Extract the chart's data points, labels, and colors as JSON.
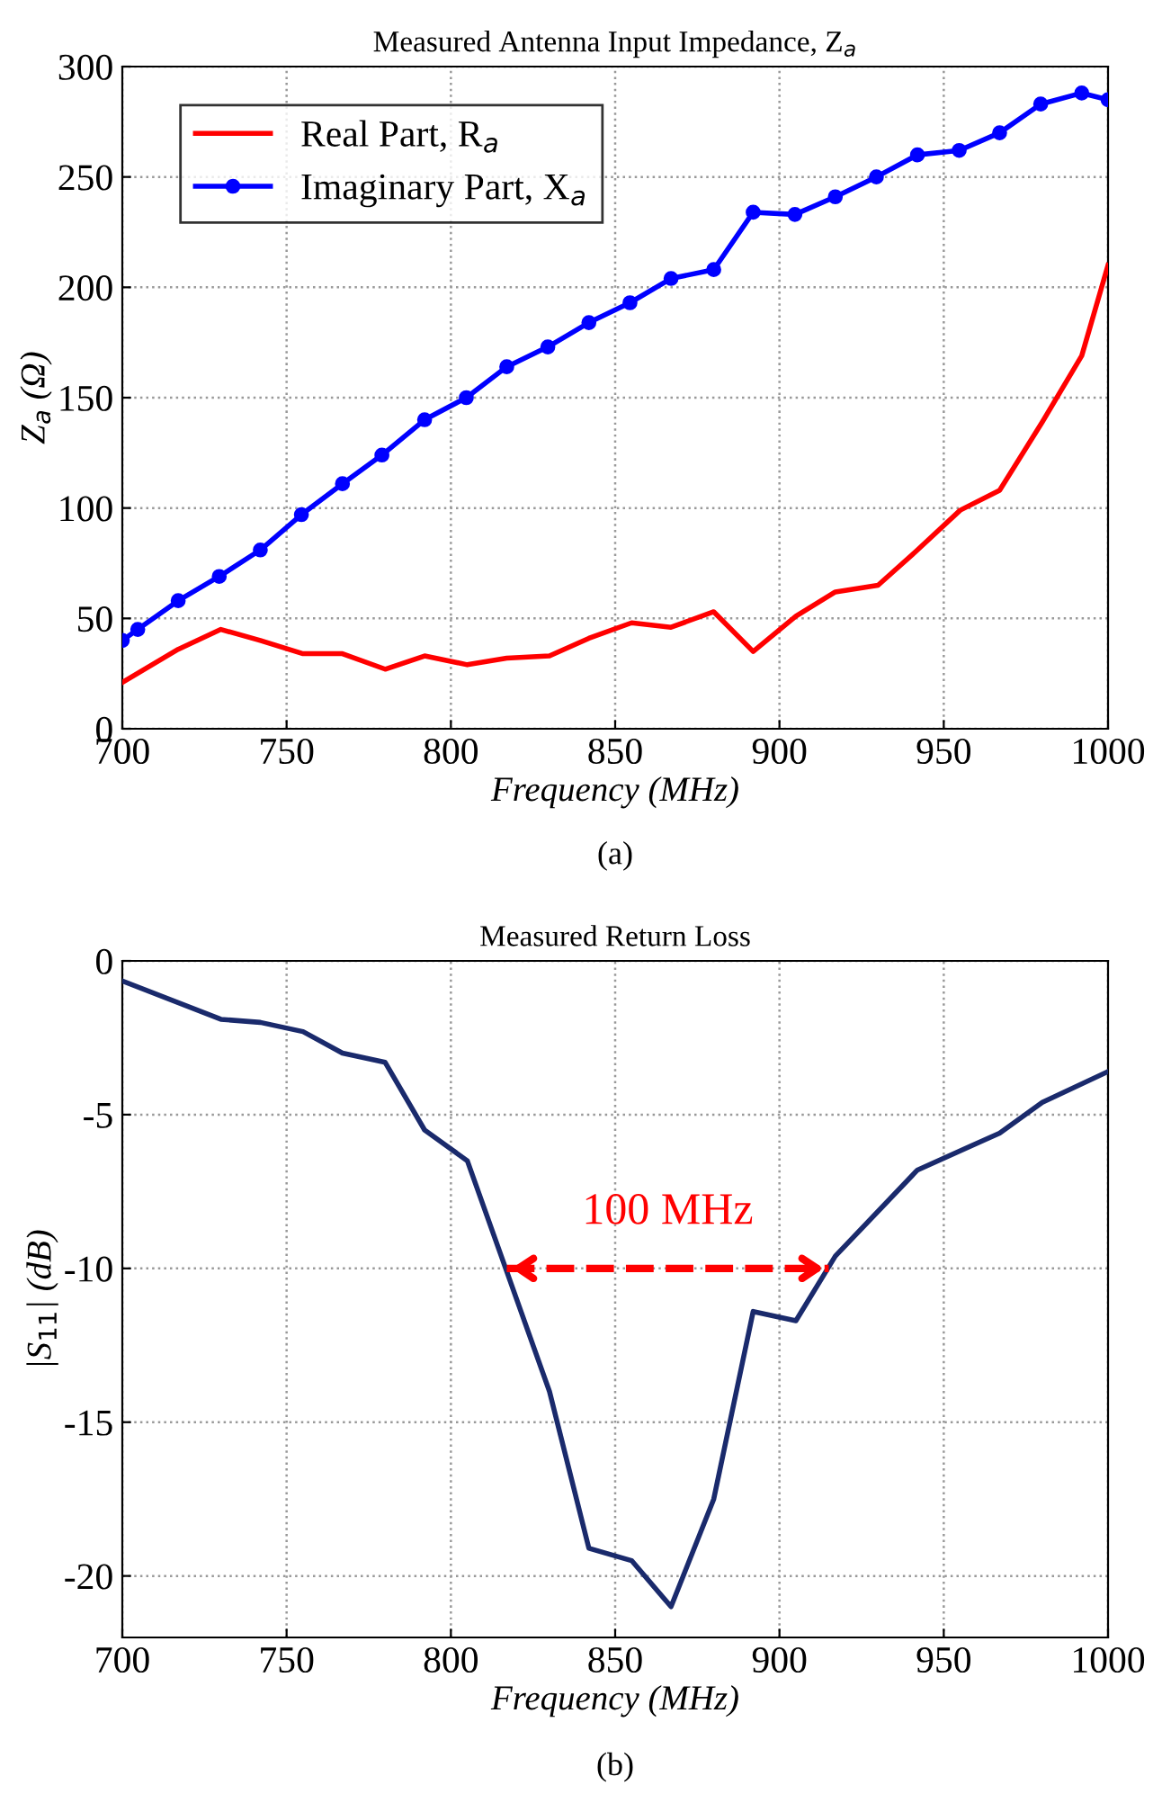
{
  "chart_data": [
    {
      "type": "line",
      "title": "Measured Antenna Input Impedance, Z$_{a}$",
      "xlabel": "Frequency (MHz)",
      "ylabel": "Z$_{a}$ (Ω)",
      "xlim": [
        700,
        1000
      ],
      "xticks": [
        700,
        750,
        800,
        850,
        900,
        950,
        1000
      ],
      "ylim": [
        0,
        300
      ],
      "yticks": [
        0,
        50,
        100,
        150,
        200,
        250,
        300
      ],
      "grid": true,
      "legend": "top left",
      "annotations": [
        "(a)"
      ],
      "series": [
        {
          "name": "Real Part, R$_{a}$",
          "color": "#ff0000",
          "marker": "none",
          "x": [
            700,
            717,
            730,
            742,
            755,
            767,
            780,
            792,
            805,
            817,
            830,
            842,
            855,
            867,
            880,
            892,
            905,
            917,
            930,
            942,
            955,
            967,
            980,
            992,
            1000
          ],
          "values": [
            21,
            36,
            45,
            40,
            34,
            34,
            27,
            33,
            29,
            32,
            33,
            41,
            48,
            46,
            53,
            35,
            51,
            62,
            65,
            81,
            99,
            108,
            139,
            169,
            210
          ]
        },
        {
          "name": "Imaginary Part, X$_{a}$",
          "color": "#0000ff",
          "marker": "circle",
          "x": [
            700,
            704.7,
            717,
            729.5,
            742,
            754.5,
            767,
            779,
            792,
            804.7,
            817,
            829.5,
            842,
            854.5,
            867,
            880,
            892,
            904.7,
            917,
            929.5,
            942,
            954.7,
            967,
            979.5,
            992,
            1000
          ],
          "values": [
            40,
            45,
            58,
            69,
            81,
            97,
            111,
            124,
            140,
            150,
            164,
            173,
            184,
            193,
            204,
            208,
            234,
            233,
            241,
            250,
            260,
            262,
            270,
            283,
            288,
            285
          ]
        }
      ]
    },
    {
      "type": "line",
      "title": "Measured Return Loss",
      "xlabel": "Frequency (MHz)",
      "ylabel": "|S$_{11}$| (dB)",
      "xlim": [
        700,
        1000
      ],
      "xticks": [
        700,
        750,
        800,
        850,
        900,
        950,
        1000
      ],
      "ylim": [
        -22,
        0
      ],
      "yticks": [
        -20,
        -15,
        -10,
        -5,
        0
      ],
      "grid": true,
      "annotations": [
        {
          "text": "100 MHz",
          "x": 866,
          "y": -10
        },
        "(b)"
      ],
      "series": [
        {
          "color": "#1a2a6c",
          "marker": "none",
          "x": [
            700,
            730,
            742,
            755,
            767,
            780,
            792,
            805,
            830,
            842,
            855,
            867,
            880,
            892,
            905,
            917,
            942,
            967,
            980,
            1000
          ],
          "values": [
            -0.65,
            -1.9,
            -2.0,
            -2.3,
            -3.0,
            -3.3,
            -5.5,
            -6.5,
            -14.0,
            -19.1,
            -19.5,
            -21.0,
            -17.5,
            -11.4,
            -11.7,
            -9.6,
            -6.8,
            -5.6,
            -4.6,
            -3.6
          ]
        },
        {
          "color": "#ff0000",
          "marker": "none",
          "line_style": "dashed",
          "x": [
            817,
            915
          ],
          "values": [
            -10,
            -10
          ]
        }
      ]
    }
  ]
}
